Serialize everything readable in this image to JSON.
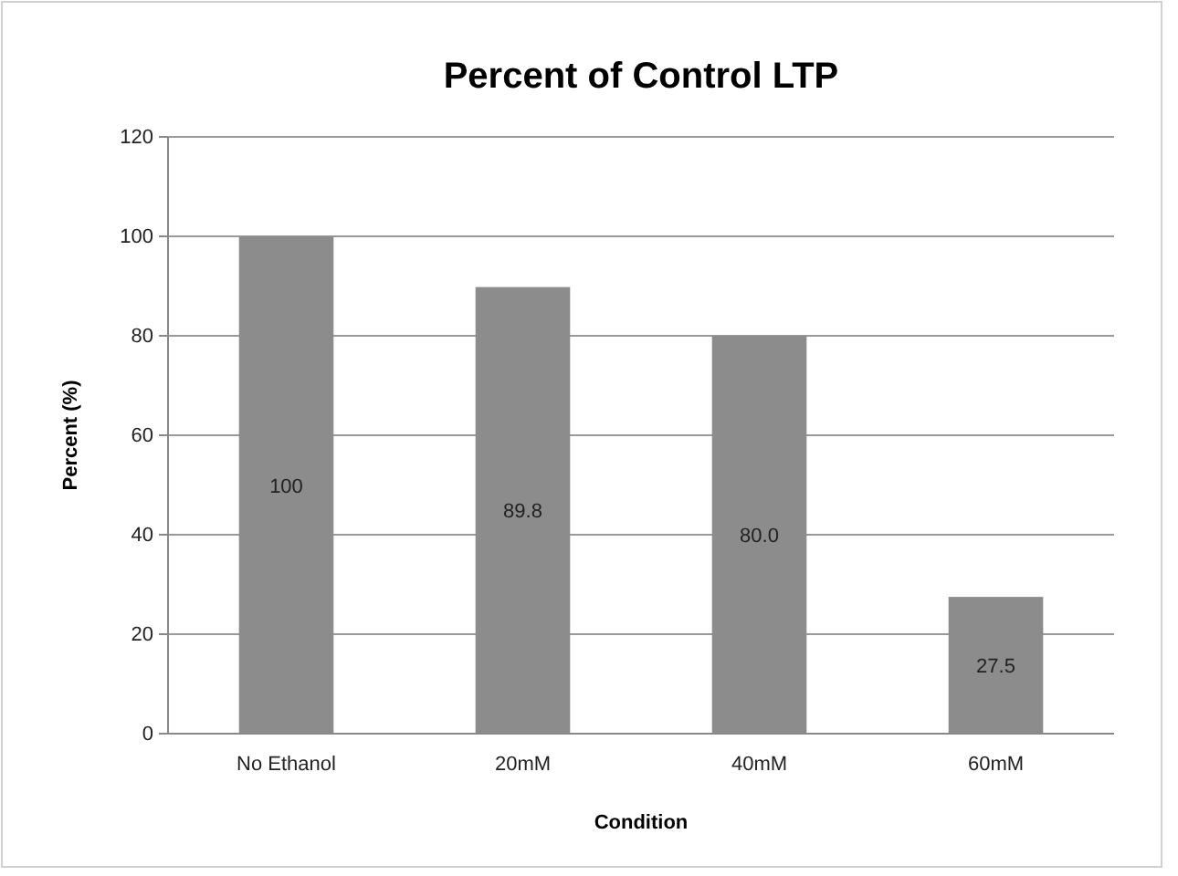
{
  "chart_data": {
    "type": "bar",
    "title": "Percent of Control LTP",
    "xlabel": "Condition",
    "ylabel": "Percent (%)",
    "categories": [
      "No Ethanol",
      "20mM",
      "40mM",
      "60mM"
    ],
    "values": [
      100,
      89.8,
      80.0,
      27.5
    ],
    "value_labels": [
      "100",
      "89.8",
      "80.0",
      "27.5"
    ],
    "color": "#8c8c8c",
    "ylim": [
      0,
      120
    ],
    "yticks": [
      0,
      20,
      40,
      60,
      80,
      100,
      120
    ],
    "grid": "y"
  }
}
